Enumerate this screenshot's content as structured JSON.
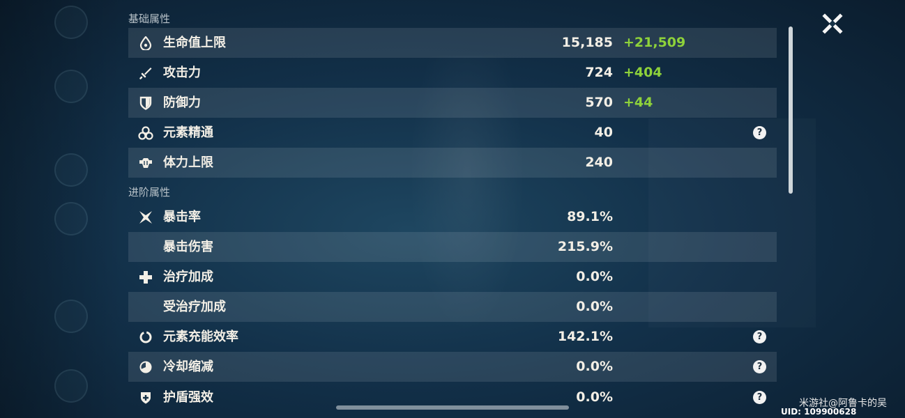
{
  "sections": {
    "basic_title": "基础属性",
    "advanced_title": "进阶属性"
  },
  "basic_stats": [
    {
      "label": "生命值上限",
      "value": "15,185",
      "bonus": "+21,509",
      "icon": "water-drop-icon"
    },
    {
      "label": "攻击力",
      "value": "724",
      "bonus": "+404",
      "icon": "sword-icon"
    },
    {
      "label": "防御力",
      "value": "570",
      "bonus": "+44",
      "icon": "shield-icon"
    },
    {
      "label": "元素精通",
      "value": "40",
      "bonus": "",
      "icon": "elemental-mastery-icon",
      "help": "?"
    },
    {
      "label": "体力上限",
      "value": "240",
      "bonus": "",
      "icon": "stamina-icon"
    }
  ],
  "advanced_stats": [
    {
      "label": "暴击率",
      "value": "89.1%",
      "icon": "crit-star-icon"
    },
    {
      "label": "暴击伤害",
      "value": "215.9%",
      "icon": ""
    },
    {
      "label": "治疗加成",
      "value": "0.0%",
      "icon": "plus-cross-icon"
    },
    {
      "label": "受治疗加成",
      "value": "0.0%",
      "icon": ""
    },
    {
      "label": "元素充能效率",
      "value": "142.1%",
      "icon": "energy-recharge-icon",
      "help": "?"
    },
    {
      "label": "冷却缩减",
      "value": "0.0%",
      "icon": "cooldown-icon",
      "help": "?"
    },
    {
      "label": "护盾强效",
      "value": "0.0%",
      "icon": "shield-strength-icon",
      "help": "?"
    }
  ],
  "footer": {
    "watermark": "米游社@阿鲁卡的吴",
    "uid": "UID: 109900628"
  },
  "colors": {
    "bonus_green": "#8ed23a",
    "row_shade": "rgba(255,255,255,0.10)"
  }
}
